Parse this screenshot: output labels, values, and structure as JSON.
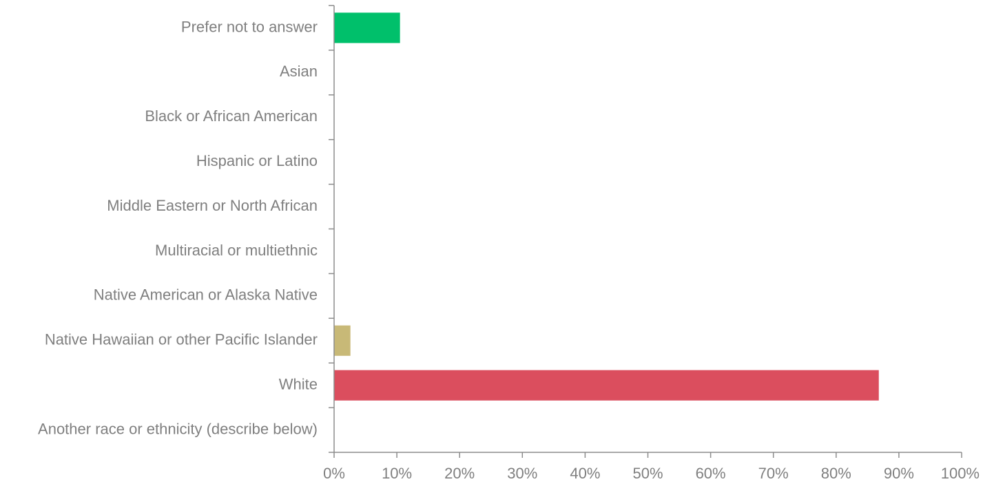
{
  "chart_data": {
    "type": "bar",
    "orientation": "horizontal",
    "categories": [
      "Prefer not to answer",
      "Asian",
      "Black or African American",
      "Hispanic or Latino",
      "Middle Eastern or North African",
      "Multiracial or multiethnic",
      "Native American or Alaska Native",
      "Native Hawaiian or other Pacific Islander",
      "White",
      "Another race or ethnicity (describe below)"
    ],
    "values": [
      10.5,
      0,
      0,
      0,
      0,
      0,
      0,
      2.6,
      86.8,
      0
    ],
    "bar_colors": [
      "#00c06b",
      "#00c06b",
      "#00c06b",
      "#00c06b",
      "#00c06b",
      "#00c06b",
      "#00c06b",
      "#c8b977",
      "#db4e5e",
      "#00c06b"
    ],
    "xlim": [
      0,
      100
    ],
    "xticks": [
      "0%",
      "10%",
      "20%",
      "30%",
      "40%",
      "50%",
      "60%",
      "70%",
      "80%",
      "90%",
      "100%"
    ],
    "title": "",
    "xlabel": "",
    "ylabel": "",
    "grid": false,
    "legend": "none"
  }
}
